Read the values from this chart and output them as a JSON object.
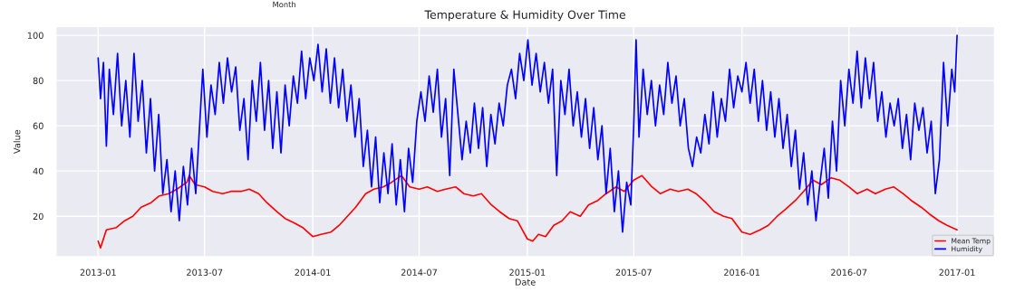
{
  "chart_data": {
    "type": "line",
    "title": "Temperature & Humidity Over Time",
    "xlabel": "Date",
    "ylabel": "Value",
    "annotations": [
      "Month"
    ],
    "xlim": [
      "2012-10-21",
      "2017-03-06"
    ],
    "xticks": [
      {
        "value": "2013-01-01",
        "label": "2013-01"
      },
      {
        "value": "2013-07-01",
        "label": "2013-07"
      },
      {
        "value": "2014-01-01",
        "label": "2014-01"
      },
      {
        "value": "2014-07-01",
        "label": "2014-07"
      },
      {
        "value": "2015-01-01",
        "label": "2015-01"
      },
      {
        "value": "2015-07-01",
        "label": "2015-07"
      },
      {
        "value": "2016-01-01",
        "label": "2016-01"
      },
      {
        "value": "2016-07-01",
        "label": "2016-07"
      },
      {
        "value": "2017-01-01",
        "label": "2017-01"
      }
    ],
    "ylim": [
      2,
      104
    ],
    "yticks": [
      20,
      40,
      60,
      80,
      100
    ],
    "grid": true,
    "legend": "bottom right",
    "marker": "none",
    "line_style": "solid",
    "series": [
      {
        "name": "Mean Temp",
        "color": "#ff0000",
        "x": [
          "2013-01-01",
          "2013-01-05",
          "2013-01-15",
          "2013-02-01",
          "2013-02-15",
          "2013-03-01",
          "2013-03-15",
          "2013-04-01",
          "2013-04-15",
          "2013-05-01",
          "2013-05-15",
          "2013-06-01",
          "2013-06-05",
          "2013-06-15",
          "2013-07-01",
          "2013-07-15",
          "2013-08-01",
          "2013-08-15",
          "2013-09-01",
          "2013-09-15",
          "2013-10-01",
          "2013-10-15",
          "2013-11-01",
          "2013-11-15",
          "2013-12-01",
          "2013-12-15",
          "2014-01-01",
          "2014-01-15",
          "2014-02-01",
          "2014-02-15",
          "2014-03-01",
          "2014-03-15",
          "2014-04-01",
          "2014-04-15",
          "2014-05-01",
          "2014-05-15",
          "2014-06-01",
          "2014-06-15",
          "2014-07-01",
          "2014-07-15",
          "2014-08-01",
          "2014-08-15",
          "2014-09-01",
          "2014-09-15",
          "2014-10-01",
          "2014-10-15",
          "2014-11-01",
          "2014-11-15",
          "2014-12-01",
          "2014-12-15",
          "2015-01-01",
          "2015-01-10",
          "2015-01-20",
          "2015-02-01",
          "2015-02-15",
          "2015-03-01",
          "2015-03-15",
          "2015-04-01",
          "2015-04-15",
          "2015-05-01",
          "2015-05-15",
          "2015-06-01",
          "2015-06-15",
          "2015-07-01",
          "2015-07-15",
          "2015-08-01",
          "2015-08-15",
          "2015-09-01",
          "2015-09-15",
          "2015-10-01",
          "2015-10-15",
          "2015-11-01",
          "2015-11-15",
          "2015-12-01",
          "2015-12-15",
          "2016-01-01",
          "2016-01-15",
          "2016-02-01",
          "2016-02-15",
          "2016-03-01",
          "2016-03-15",
          "2016-04-01",
          "2016-04-15",
          "2016-05-01",
          "2016-05-15",
          "2016-06-01",
          "2016-06-15",
          "2016-07-01",
          "2016-07-15",
          "2016-08-01",
          "2016-08-15",
          "2016-09-01",
          "2016-09-15",
          "2016-10-01",
          "2016-10-15",
          "2016-11-01",
          "2016-11-15",
          "2016-12-01",
          "2016-12-15",
          "2017-01-01"
        ],
        "values": [
          9,
          6,
          14,
          15,
          18,
          20,
          24,
          26,
          29,
          30,
          32,
          35,
          38,
          34,
          33,
          31,
          30,
          31,
          31,
          32,
          30,
          26,
          22,
          19,
          17,
          15,
          11,
          12,
          13,
          16,
          20,
          24,
          30,
          32,
          33,
          35,
          38,
          33,
          32,
          33,
          31,
          32,
          33,
          30,
          29,
          30,
          25,
          22,
          19,
          18,
          10,
          9,
          12,
          11,
          16,
          18,
          22,
          20,
          25,
          27,
          30,
          33,
          31,
          36,
          38,
          33,
          30,
          32,
          31,
          32,
          30,
          26,
          22,
          20,
          19,
          13,
          12,
          14,
          16,
          20,
          23,
          27,
          31,
          36,
          34,
          37,
          36,
          33,
          30,
          32,
          30,
          32,
          33,
          30,
          27,
          24,
          21,
          18,
          16,
          14
        ]
      },
      {
        "name": "Humidity",
        "color": "#0000ff",
        "x": [
          "2013-01-01",
          "2013-01-05",
          "2013-01-10",
          "2013-01-15",
          "2013-01-20",
          "2013-01-27",
          "2013-02-03",
          "2013-02-10",
          "2013-02-17",
          "2013-02-24",
          "2013-03-03",
          "2013-03-10",
          "2013-03-17",
          "2013-03-24",
          "2013-03-31",
          "2013-04-07",
          "2013-04-14",
          "2013-04-21",
          "2013-04-28",
          "2013-05-05",
          "2013-05-12",
          "2013-05-19",
          "2013-05-26",
          "2013-06-02",
          "2013-06-09",
          "2013-06-16",
          "2013-06-23",
          "2013-06-28",
          "2013-07-05",
          "2013-07-12",
          "2013-07-19",
          "2013-07-26",
          "2013-08-02",
          "2013-08-09",
          "2013-08-16",
          "2013-08-23",
          "2013-08-30",
          "2013-09-06",
          "2013-09-13",
          "2013-09-20",
          "2013-09-27",
          "2013-10-04",
          "2013-10-11",
          "2013-10-18",
          "2013-10-25",
          "2013-11-01",
          "2013-11-08",
          "2013-11-15",
          "2013-11-22",
          "2013-11-29",
          "2013-12-06",
          "2013-12-13",
          "2013-12-20",
          "2013-12-27",
          "2014-01-03",
          "2014-01-10",
          "2014-01-17",
          "2014-01-24",
          "2014-01-31",
          "2014-02-07",
          "2014-02-14",
          "2014-02-21",
          "2014-02-28",
          "2014-03-07",
          "2014-03-14",
          "2014-03-21",
          "2014-03-28",
          "2014-04-04",
          "2014-04-11",
          "2014-04-18",
          "2014-04-25",
          "2014-05-02",
          "2014-05-09",
          "2014-05-16",
          "2014-05-23",
          "2014-05-30",
          "2014-06-06",
          "2014-06-13",
          "2014-06-20",
          "2014-06-27",
          "2014-07-04",
          "2014-07-11",
          "2014-07-18",
          "2014-07-25",
          "2014-08-01",
          "2014-08-08",
          "2014-08-15",
          "2014-08-22",
          "2014-08-29",
          "2014-09-05",
          "2014-09-12",
          "2014-09-19",
          "2014-09-26",
          "2014-10-03",
          "2014-10-10",
          "2014-10-17",
          "2014-10-24",
          "2014-10-31",
          "2014-11-07",
          "2014-11-14",
          "2014-11-21",
          "2014-11-28",
          "2014-12-05",
          "2014-12-12",
          "2014-12-19",
          "2014-12-26",
          "2015-01-02",
          "2015-01-09",
          "2015-01-16",
          "2015-01-23",
          "2015-01-30",
          "2015-02-06",
          "2015-02-13",
          "2015-02-20",
          "2015-02-27",
          "2015-03-06",
          "2015-03-13",
          "2015-03-20",
          "2015-03-27",
          "2015-04-03",
          "2015-04-10",
          "2015-04-17",
          "2015-04-24",
          "2015-05-01",
          "2015-05-08",
          "2015-05-15",
          "2015-05-22",
          "2015-05-29",
          "2015-06-05",
          "2015-06-12",
          "2015-06-19",
          "2015-06-26",
          "2015-07-01",
          "2015-07-05",
          "2015-07-10",
          "2015-07-17",
          "2015-07-24",
          "2015-07-31",
          "2015-08-07",
          "2015-08-14",
          "2015-08-21",
          "2015-08-28",
          "2015-09-04",
          "2015-09-11",
          "2015-09-18",
          "2015-09-25",
          "2015-10-02",
          "2015-10-09",
          "2015-10-16",
          "2015-10-23",
          "2015-10-30",
          "2015-11-06",
          "2015-11-13",
          "2015-11-20",
          "2015-11-27",
          "2015-12-04",
          "2015-12-11",
          "2015-12-18",
          "2015-12-25",
          "2016-01-01",
          "2016-01-08",
          "2016-01-15",
          "2016-01-22",
          "2016-01-29",
          "2016-02-05",
          "2016-02-12",
          "2016-02-19",
          "2016-02-26",
          "2016-03-04",
          "2016-03-11",
          "2016-03-18",
          "2016-03-25",
          "2016-04-01",
          "2016-04-08",
          "2016-04-15",
          "2016-04-22",
          "2016-04-29",
          "2016-05-06",
          "2016-05-13",
          "2016-05-20",
          "2016-05-27",
          "2016-06-03",
          "2016-06-10",
          "2016-06-17",
          "2016-06-24",
          "2016-07-01",
          "2016-07-08",
          "2016-07-15",
          "2016-07-22",
          "2016-07-29",
          "2016-08-05",
          "2016-08-12",
          "2016-08-19",
          "2016-08-26",
          "2016-09-02",
          "2016-09-09",
          "2016-09-16",
          "2016-09-23",
          "2016-09-30",
          "2016-10-07",
          "2016-10-14",
          "2016-10-21",
          "2016-10-28",
          "2016-11-04",
          "2016-11-11",
          "2016-11-18",
          "2016-11-25",
          "2016-12-02",
          "2016-12-09",
          "2016-12-16",
          "2016-12-23",
          "2016-12-28",
          "2017-01-01"
        ],
        "values": [
          90,
          72,
          88,
          51,
          85,
          65,
          92,
          60,
          80,
          55,
          92,
          62,
          80,
          48,
          72,
          40,
          65,
          30,
          45,
          22,
          40,
          18,
          42,
          25,
          50,
          30,
          62,
          85,
          55,
          78,
          65,
          88,
          70,
          90,
          75,
          86,
          58,
          72,
          45,
          80,
          62,
          88,
          58,
          80,
          50,
          75,
          48,
          78,
          60,
          82,
          70,
          93,
          72,
          90,
          80,
          96,
          75,
          94,
          70,
          90,
          68,
          85,
          62,
          78,
          55,
          72,
          42,
          58,
          33,
          55,
          26,
          48,
          30,
          52,
          25,
          45,
          22,
          50,
          35,
          62,
          75,
          62,
          82,
          66,
          85,
          55,
          72,
          38,
          85,
          65,
          45,
          62,
          48,
          70,
          50,
          68,
          42,
          65,
          52,
          70,
          60,
          78,
          85,
          72,
          92,
          80,
          98,
          78,
          92,
          75,
          88,
          70,
          85,
          38,
          80,
          65,
          85,
          60,
          75,
          55,
          72,
          50,
          68,
          45,
          60,
          30,
          50,
          22,
          40,
          13,
          35,
          25,
          60,
          98,
          55,
          85,
          65,
          80,
          60,
          78,
          65,
          88,
          70,
          82,
          60,
          72,
          50,
          42,
          55,
          48,
          65,
          52,
          75,
          55,
          72,
          62,
          85,
          68,
          82,
          75,
          88,
          70,
          85,
          62,
          80,
          58,
          75,
          55,
          72,
          50,
          65,
          42,
          58,
          32,
          48,
          25,
          40,
          18,
          35,
          50,
          28,
          62,
          40,
          80,
          60,
          85,
          70,
          93,
          68,
          90,
          72,
          88,
          62,
          75,
          55,
          70,
          60,
          72,
          50,
          65,
          45,
          70,
          58,
          68,
          48,
          62,
          30,
          45,
          88,
          60,
          85,
          75,
          100
        ]
      }
    ]
  }
}
